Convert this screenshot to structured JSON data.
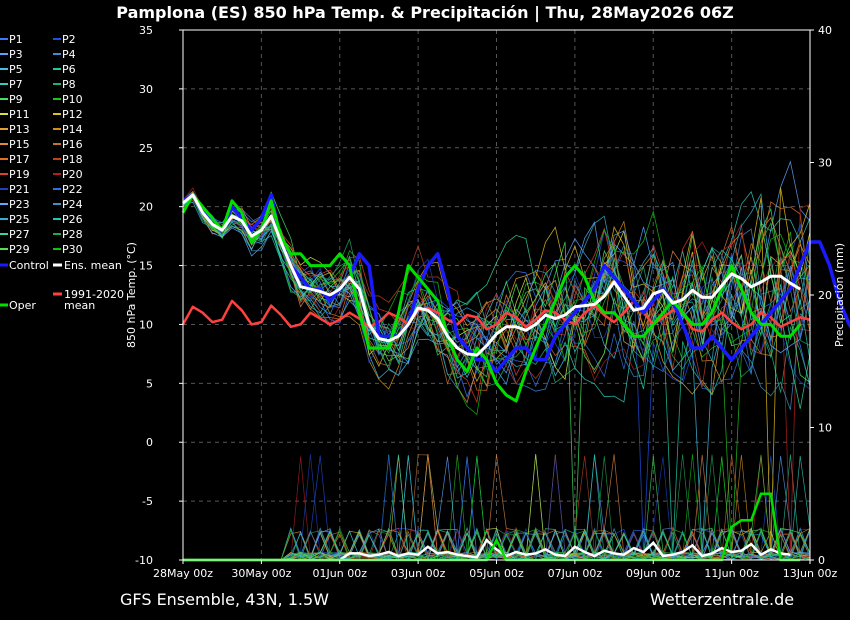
{
  "title": "Pamplona  (ES)  850 hPa Temp. & Precipitación | Thu, 28May2026 06Z",
  "footer": {
    "left": "GFS Ensemble, 43N, 1.5W",
    "right": "Wetterzentrale.de"
  },
  "chart_data": {
    "type": "line",
    "xlabel": "Date (UTC)",
    "ylabel_left": "850 hPa Temp. (°C)",
    "ylabel_right": "Precipitación (mm)",
    "ylim_left": [
      -10,
      35
    ],
    "ylim_right": [
      0,
      40
    ],
    "yticks_left": [
      "-10",
      "-5",
      "0",
      "5",
      "10",
      "15",
      "20",
      "25",
      "30",
      "35"
    ],
    "yticks_right": [
      "0",
      "10",
      "20",
      "30",
      "40"
    ],
    "x_ticks": [
      "28May 00z",
      "30May 00z",
      "01Jun 00z",
      "03Jun 00z",
      "05Jun 00z",
      "07Jun 00z",
      "09Jun 00z",
      "11Jun 00z",
      "13Jun 00z"
    ],
    "x_range_days": [
      0,
      16
    ],
    "grid": true,
    "legend": {
      "entries": [
        {
          "label": "P1",
          "color": "#3c78ff"
        },
        {
          "label": "P2",
          "color": "#2050e0"
        },
        {
          "label": "P3",
          "color": "#5aa0ff"
        },
        {
          "label": "P4",
          "color": "#3c8cd8"
        },
        {
          "label": "P5",
          "color": "#40c0e0"
        },
        {
          "label": "P6",
          "color": "#20c8a0"
        },
        {
          "label": "P7",
          "color": "#30d0c0"
        },
        {
          "label": "P8",
          "color": "#20b070"
        },
        {
          "label": "P9",
          "color": "#40e060"
        },
        {
          "label": "P10",
          "color": "#20c020"
        },
        {
          "label": "P11",
          "color": "#d8e040"
        },
        {
          "label": "P12",
          "color": "#e0c020"
        },
        {
          "label": "P13",
          "color": "#e0a030"
        },
        {
          "label": "P14",
          "color": "#d09020"
        },
        {
          "label": "P15",
          "color": "#e08840"
        },
        {
          "label": "P16",
          "color": "#c07030"
        },
        {
          "label": "P17",
          "color": "#e07020"
        },
        {
          "label": "P18",
          "color": "#c04020"
        },
        {
          "label": "P19",
          "color": "#e04030"
        },
        {
          "label": "P20",
          "color": "#b02020"
        },
        {
          "label": "P21",
          "color": "#2040c0"
        },
        {
          "label": "P22",
          "color": "#3070e0"
        },
        {
          "label": "P23",
          "color": "#60a8ff"
        },
        {
          "label": "P24",
          "color": "#4090c0"
        },
        {
          "label": "P25",
          "color": "#30b0d0"
        },
        {
          "label": "P26",
          "color": "#20c8b0"
        },
        {
          "label": "P27",
          "color": "#30d8a0"
        },
        {
          "label": "P28",
          "color": "#20a858"
        },
        {
          "label": "P29",
          "color": "#50e050"
        },
        {
          "label": "P30",
          "color": "#10c010"
        }
      ],
      "control": {
        "label": "Control",
        "color": "#1a1aff"
      },
      "ens_mean": {
        "label": "Ens. mean",
        "color": "#ffffff"
      },
      "clim": {
        "label": "1991-2020 mean",
        "color": "#ff4040"
      },
      "oper": {
        "label": "Oper",
        "color": "#00e000"
      }
    },
    "series": [
      {
        "name": "Control",
        "color": "#1a1aff",
        "day_step": 0.25,
        "values": [
          20.5,
          21,
          19.5,
          19,
          18,
          20,
          19,
          18,
          19,
          21,
          17,
          15,
          14,
          13,
          13,
          12,
          13,
          14,
          16,
          15,
          9,
          9,
          9,
          10,
          13,
          15,
          16,
          13,
          9,
          8,
          7,
          7,
          6,
          7,
          8,
          8,
          7,
          7,
          9,
          10,
          11,
          12,
          13,
          15,
          14,
          13,
          12,
          11,
          12,
          13,
          12,
          10,
          8,
          8,
          9,
          8,
          7,
          8,
          9,
          10,
          11,
          12,
          13,
          15,
          17,
          17,
          15,
          12,
          10,
          9,
          8,
          8
        ]
      },
      {
        "name": "Oper",
        "color": "#00e000",
        "day_step": 0.25,
        "values": [
          19.5,
          21,
          20,
          19,
          18,
          20.5,
          19.5,
          17,
          18,
          20.5,
          17.5,
          16,
          16,
          15,
          15,
          15,
          16,
          15,
          11,
          8,
          8,
          8,
          11,
          15,
          14,
          13,
          12,
          9,
          7,
          6,
          8,
          7,
          5,
          4,
          3.5,
          6,
          8,
          10,
          12,
          14,
          15,
          14,
          12,
          11,
          11,
          10,
          9,
          9,
          10,
          11,
          12,
          11,
          10,
          10,
          11,
          13,
          15,
          13,
          11,
          10,
          10,
          9,
          9,
          10
        ]
      },
      {
        "name": "Ens. mean",
        "color": "#ffffff",
        "day_step": 0.25,
        "values": [
          20.3,
          21,
          19.5,
          18.5,
          18,
          19.2,
          18.8,
          17.5,
          18,
          19.2,
          17,
          15,
          13.2,
          13,
          12.8,
          12.5,
          13,
          14,
          13,
          10,
          8.8,
          8.6,
          9,
          10,
          11.4,
          11.2,
          10.5,
          9,
          8,
          7.5,
          7.4,
          8.2,
          9.2,
          9.8,
          9.8,
          9.5,
          10,
          10.8,
          10.5,
          10.8,
          11.5,
          11.6,
          11.7,
          12.4,
          13.6,
          12.4,
          11.2,
          11.4,
          12.6,
          12.9,
          11.8,
          12.1,
          12.9,
          12.3,
          12.3,
          13.3,
          14.3,
          13.9,
          13.2,
          13.6,
          14.1,
          14.1,
          13.5,
          13
        ]
      },
      {
        "name": "1991-2020 mean",
        "color": "#ff4040",
        "day_step": 0.25,
        "values": [
          10,
          11.5,
          11,
          10.2,
          10.4,
          12,
          11.2,
          10,
          10.2,
          11.6,
          10.8,
          9.8,
          10,
          11,
          10.5,
          10,
          10.4,
          11,
          10.5,
          9.8,
          10.2,
          11,
          10.6,
          10,
          11.2,
          11.4,
          11,
          10.4,
          10,
          10.8,
          10.6,
          9.6,
          10,
          11,
          10.6,
          9.8,
          10.4,
          11.2,
          11,
          10.4,
          10,
          11,
          11.6,
          10.8,
          10.2,
          11,
          12,
          11,
          10,
          10.6,
          11.2,
          11,
          9.6,
          9.4,
          10.4,
          11,
          10.2,
          9.6,
          10,
          11,
          10.6,
          9.8,
          10.2,
          10.6,
          10.4
        ]
      }
    ],
    "precip_series": [
      {
        "name": "Ens. mean",
        "color": "#ffffff",
        "day_step": 0.25,
        "values": [
          0,
          0,
          0,
          0,
          0,
          0,
          0,
          0,
          0,
          0,
          0,
          0,
          0,
          0,
          0,
          0,
          0,
          0.5,
          0.5,
          0.3,
          0.4,
          0.6,
          0.3,
          0.5,
          0.4,
          1,
          0.5,
          0.6,
          0.4,
          0.3,
          0.2,
          1.5,
          0.8,
          0.3,
          0.6,
          0.4,
          0.5,
          0.8,
          0.4,
          0.3,
          1,
          0.6,
          0.3,
          0.7,
          0.5,
          0.4,
          0.9,
          0.6,
          1.3,
          0.3,
          0.4,
          0.6,
          1.1,
          0.3,
          0.5,
          0.9,
          0.6,
          0.7,
          1.2,
          0.4,
          0.8,
          0.5,
          0.4
        ]
      },
      {
        "name": "Oper",
        "color": "#00e000",
        "day_step": 0.25,
        "values": [
          0,
          0,
          0,
          0,
          0,
          0,
          0,
          0,
          0,
          0,
          0,
          0,
          0,
          0,
          0,
          0,
          0,
          0,
          0,
          0,
          0,
          0,
          0,
          0,
          0,
          0,
          0,
          0,
          0,
          0,
          0,
          0,
          1.5,
          0,
          0,
          0,
          0,
          0,
          0,
          0,
          0,
          0,
          0,
          0,
          0,
          0,
          0,
          0,
          0,
          0,
          0,
          0,
          0,
          0,
          0,
          0,
          2.5,
          3,
          3,
          5,
          5,
          0,
          0,
          0
        ]
      }
    ]
  }
}
